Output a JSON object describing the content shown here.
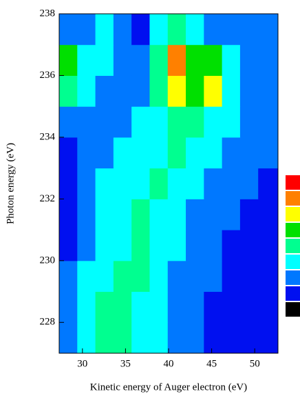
{
  "chart_data": {
    "type": "contour",
    "x_label": "Kinetic energy of Auger electron (eV)",
    "y_label": "Photon energy (eV)",
    "xlim": [
      27.3,
      52.7
    ],
    "ylim": [
      227,
      238
    ],
    "xticks": [
      30,
      35,
      40,
      45,
      50
    ],
    "yticks": [
      228,
      230,
      232,
      234,
      236,
      238
    ],
    "x_edges": [
      27.3,
      29.4,
      31.5,
      33.6,
      35.7,
      37.8,
      39.9,
      42,
      44.1,
      46.2,
      48.3,
      50.4,
      52.7
    ],
    "y_edges": [
      227,
      228,
      229,
      230,
      231,
      232,
      233,
      234,
      235,
      236,
      237,
      238
    ],
    "z": [
      [
        2,
        3,
        4,
        4,
        3,
        3,
        2,
        2,
        1,
        1,
        1,
        1
      ],
      [
        2,
        3,
        4,
        4,
        3,
        3,
        2,
        2,
        1,
        1,
        1,
        1
      ],
      [
        2,
        3,
        3,
        4,
        4,
        3,
        2,
        2,
        2,
        1,
        1,
        1
      ],
      [
        1,
        2,
        3,
        3,
        4,
        3,
        3,
        2,
        2,
        1,
        1,
        1
      ],
      [
        1,
        2,
        3,
        3,
        4,
        3,
        3,
        2,
        2,
        2,
        1,
        1
      ],
      [
        1,
        2,
        3,
        3,
        3,
        4,
        3,
        3,
        2,
        2,
        2,
        1
      ],
      [
        1,
        2,
        2,
        3,
        3,
        3,
        4,
        3,
        3,
        2,
        2,
        2
      ],
      [
        2,
        2,
        2,
        2,
        3,
        3,
        4,
        4,
        3,
        3,
        2,
        2
      ],
      [
        4,
        3,
        2,
        2,
        2,
        4,
        6,
        5,
        6,
        3,
        2,
        2
      ],
      [
        5,
        3,
        3,
        2,
        2,
        4,
        7,
        5,
        5,
        3,
        2,
        2
      ],
      [
        2,
        2,
        3,
        2,
        1,
        3,
        4,
        3,
        2,
        2,
        2,
        2
      ]
    ],
    "colorscale": [
      "#000000",
      "#0010f0",
      "#0078ff",
      "#00ffff",
      "#00ff90",
      "#00e000",
      "#ffff00",
      "#ff8000",
      "#ff0000"
    ]
  }
}
